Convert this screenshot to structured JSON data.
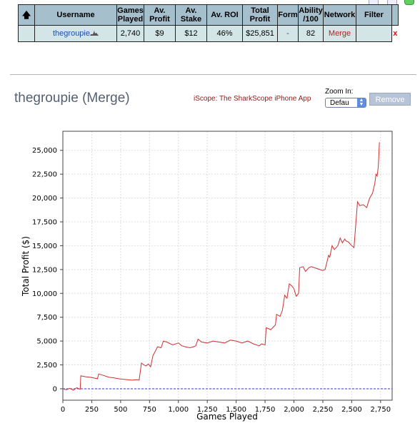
{
  "table": {
    "headers": [
      {
        "key": "sort",
        "label": ""
      },
      {
        "key": "username",
        "label": "Username"
      },
      {
        "key": "games_played",
        "label": "Games Played"
      },
      {
        "key": "av_profit",
        "label": "Av. Profit"
      },
      {
        "key": "av_stake",
        "label": "Av. Stake"
      },
      {
        "key": "av_roi",
        "label": "Av. ROI"
      },
      {
        "key": "total_profit",
        "label": "Total Profit"
      },
      {
        "key": "form",
        "label": "Form"
      },
      {
        "key": "ability",
        "label": "Ability /100"
      },
      {
        "key": "network",
        "label": "Network"
      },
      {
        "key": "filter",
        "label": "Filter"
      }
    ],
    "row": {
      "username": "thegroupie",
      "games_played": "2,740",
      "av_profit": "$9",
      "av_stake": "$12",
      "av_roi": "46%",
      "total_profit": "$25,851",
      "form": "-",
      "ability": "82",
      "network": "Merge",
      "filter": "",
      "remove": "x"
    }
  },
  "header": {
    "title": "thegroupie (Merge)",
    "iscope_link": "iScope: The SharkScope iPhone App",
    "zoom_label": "Zoom In:",
    "zoom_value": "Defau",
    "remove_button": "Remove"
  },
  "chart_data": {
    "type": "line",
    "xlabel": "Games Played",
    "ylabel": "Total Profit ($)",
    "xlim": [
      0,
      2850
    ],
    "ylim": [
      -1200,
      27000
    ],
    "xticks": [
      0,
      250,
      500,
      750,
      1000,
      1250,
      1500,
      1750,
      2000,
      2250,
      2500,
      2750
    ],
    "yticks": [
      0,
      2500,
      5000,
      7500,
      10000,
      12500,
      15000,
      17500,
      20000,
      22500,
      25000
    ],
    "grid": true,
    "line_color": "#d03030",
    "zero_line_color": "#3333cc",
    "series": [
      {
        "x": [
          0,
          30,
          60,
          90,
          120,
          150,
          155,
          200,
          240,
          280,
          300,
          310,
          350,
          400,
          440,
          480,
          520,
          560,
          600,
          640,
          660,
          680,
          700,
          720,
          740,
          760,
          780,
          790,
          820,
          850,
          870,
          900,
          950,
          1000,
          1030,
          1060,
          1100,
          1130,
          1150,
          1170,
          1200,
          1250,
          1300,
          1350,
          1400,
          1450,
          1500,
          1550,
          1600,
          1650,
          1700,
          1720,
          1750,
          1760,
          1800,
          1840,
          1850,
          1880,
          1900,
          1920,
          1940,
          1960,
          1980,
          2000,
          2020,
          2040,
          2050,
          2080,
          2100,
          2130,
          2150,
          2200,
          2250,
          2270,
          2300,
          2310,
          2330,
          2350,
          2380,
          2400,
          2420,
          2440,
          2450,
          2470,
          2500,
          2520,
          2550,
          2570,
          2600,
          2630,
          2650,
          2660,
          2680,
          2700,
          2710,
          2720,
          2730,
          2740
        ],
        "y": [
          0,
          -100,
          50,
          -150,
          100,
          -50,
          1350,
          1250,
          1200,
          1100,
          1050,
          1550,
          1400,
          1200,
          1150,
          1050,
          1000,
          950,
          900,
          950,
          900,
          2700,
          2500,
          2400,
          2600,
          2300,
          3500,
          3700,
          4400,
          4300,
          5000,
          4900,
          4600,
          4800,
          4500,
          4400,
          4300,
          4400,
          4500,
          5200,
          4900,
          4800,
          5000,
          4900,
          4800,
          5100,
          5000,
          4800,
          5000,
          4700,
          4500,
          4700,
          4600,
          6400,
          6200,
          6700,
          7800,
          7600,
          8200,
          9800,
          9500,
          11000,
          10800,
          10500,
          9700,
          10000,
          12700,
          12800,
          12300,
          12700,
          12800,
          12600,
          12400,
          12500,
          14000,
          13800,
          15000,
          14600,
          15000,
          15800,
          15300,
          15700,
          15500,
          15400,
          15000,
          14800,
          19600,
          19200,
          19300,
          19000,
          19800,
          20100,
          20500,
          21500,
          22500,
          22300,
          23300,
          25851
        ]
      }
    ]
  }
}
